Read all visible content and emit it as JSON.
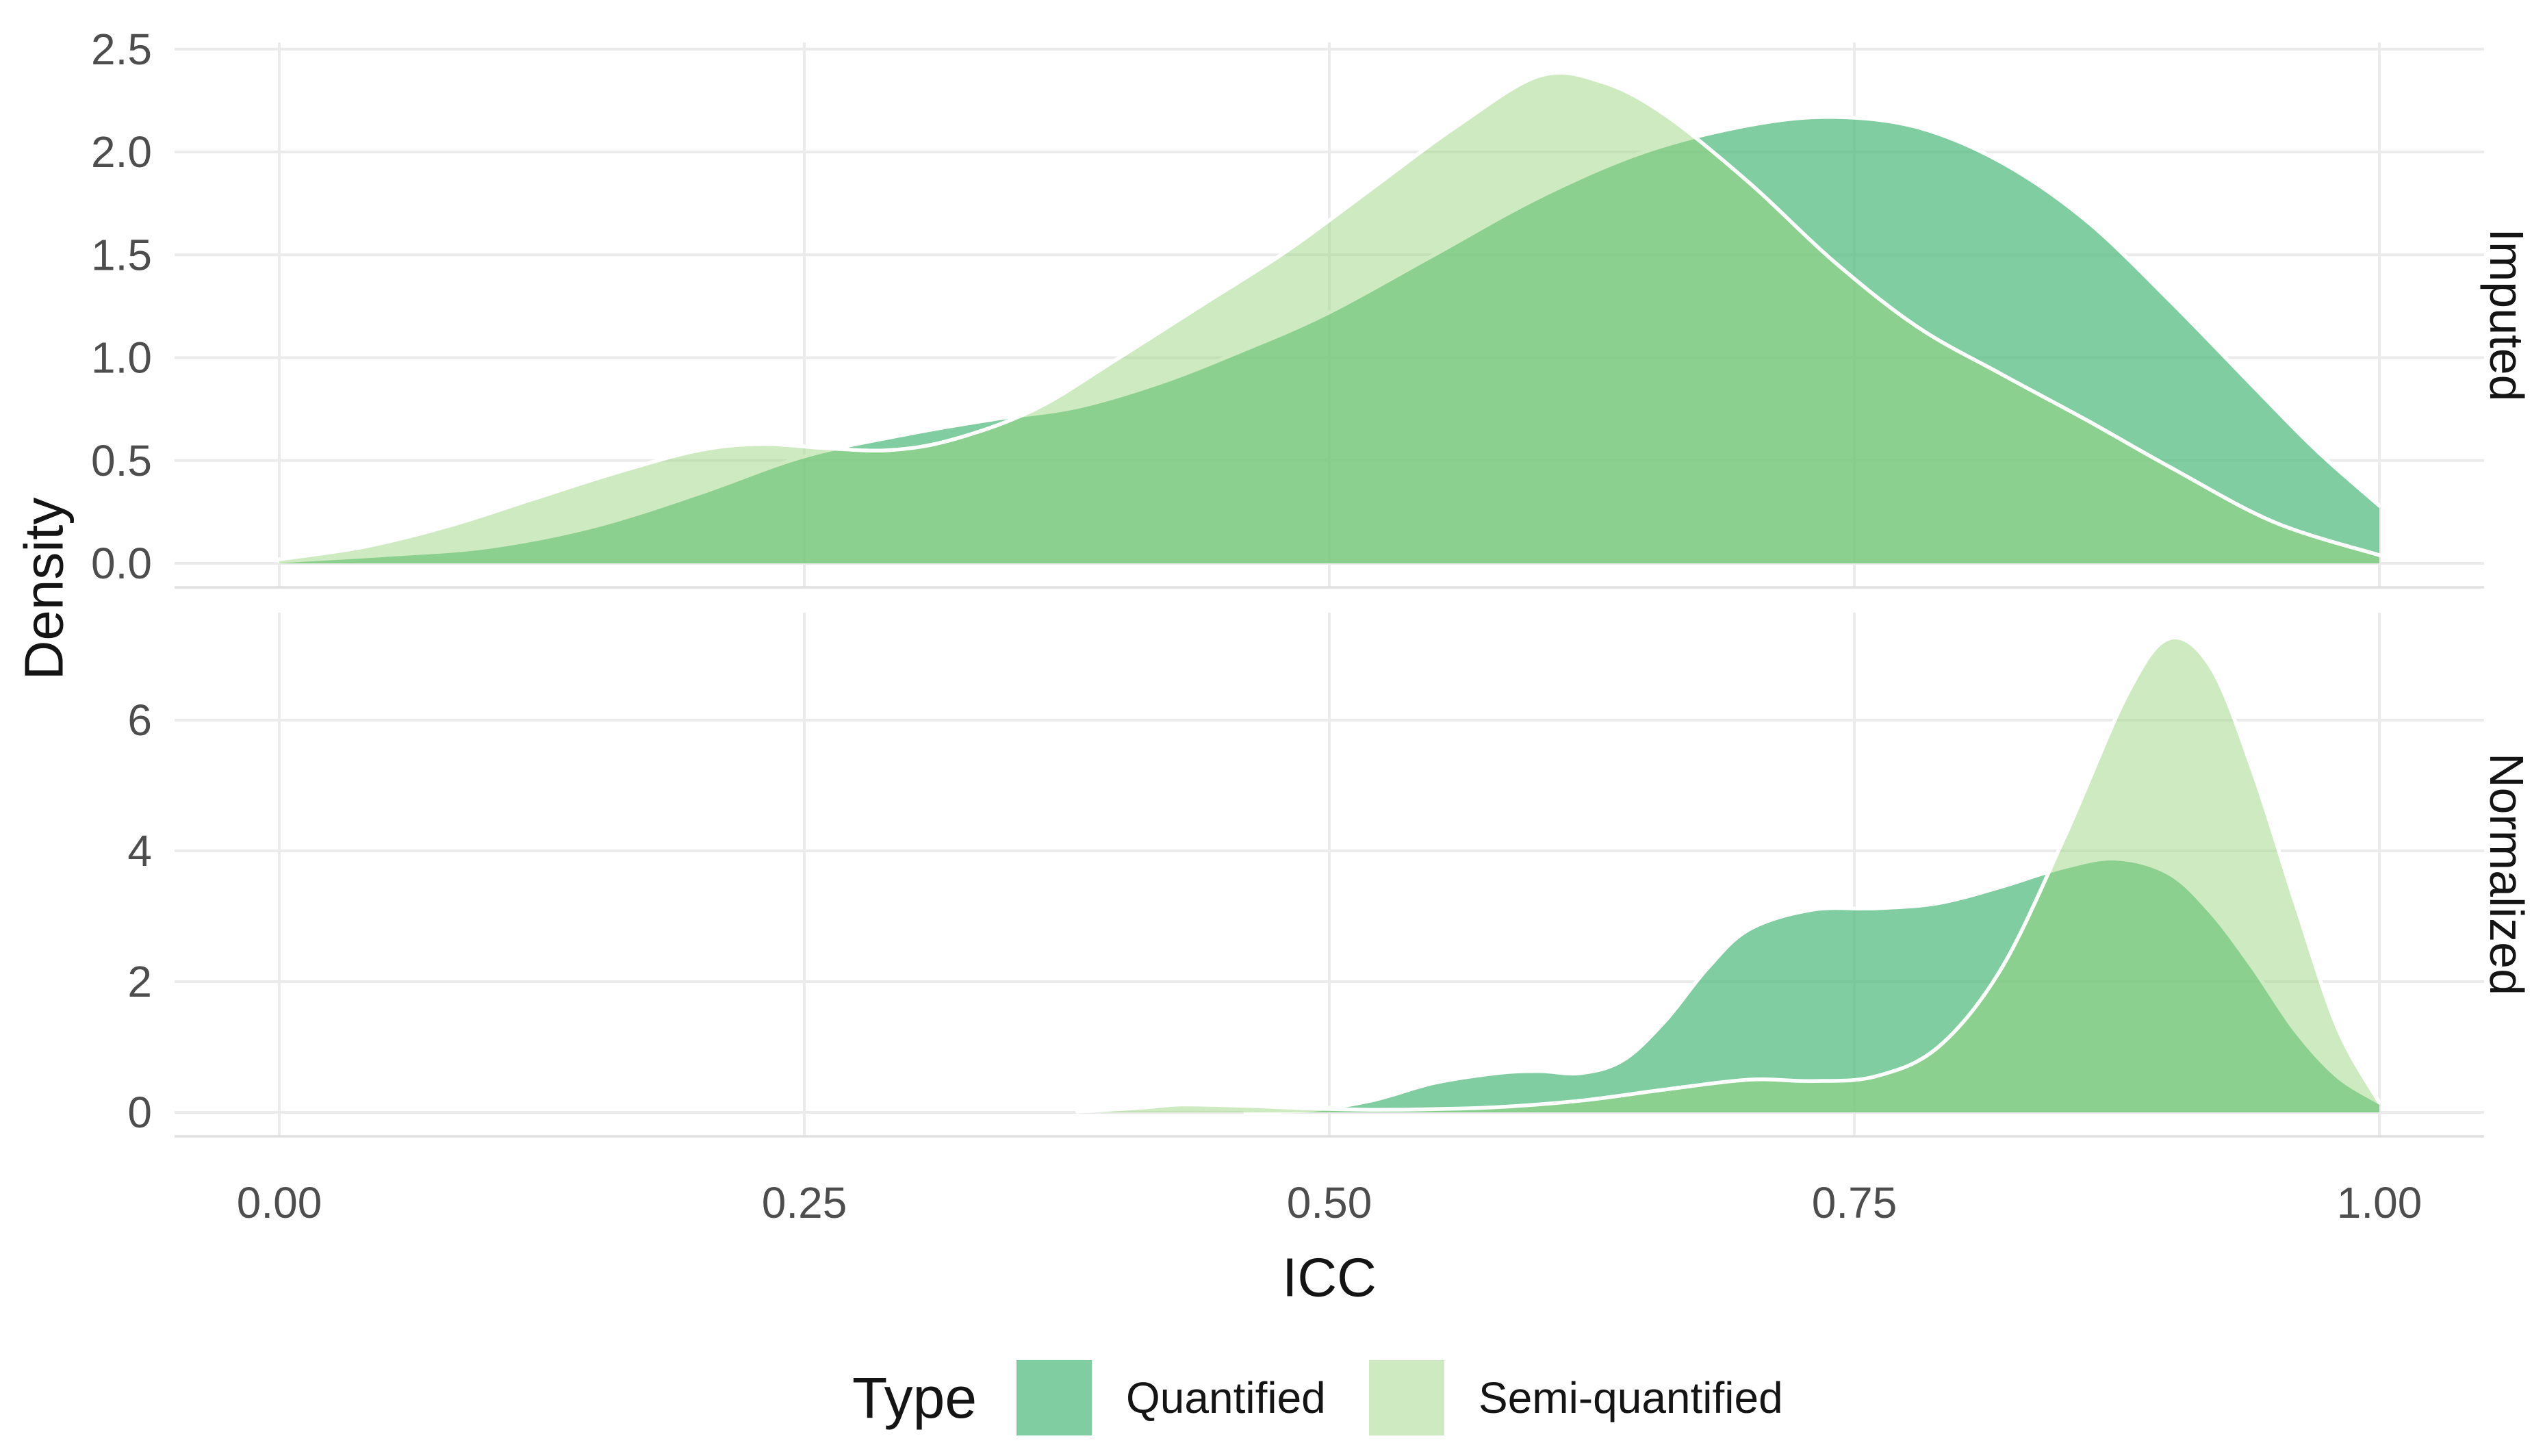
{
  "chart_data": {
    "type": "area",
    "subtype": "density",
    "title": "",
    "xlabel": "ICC",
    "ylabel": "Density",
    "grid": true,
    "legend_position": "bottom",
    "legend": {
      "title": "Type",
      "entries": [
        {
          "label": "Quantified",
          "fill": "#4DBA7B",
          "fill_opacity": 0.72
        },
        {
          "label": "Semi-quantified",
          "fill": "#98D47B",
          "fill_opacity": 0.48
        }
      ]
    },
    "x_axis": {
      "ticks": [
        0,
        0.25,
        0.5,
        0.75,
        1.0
      ],
      "tick_labels": [
        "0.00",
        "0.25",
        "0.50",
        "0.75",
        "1.00"
      ],
      "range": [
        0,
        1
      ]
    },
    "facets": [
      {
        "label": "Imputed",
        "ylim": [
          0,
          2.53
        ],
        "y_ticks": [
          0,
          0.5,
          1.0,
          1.5,
          2.0,
          2.5
        ],
        "y_tick_labels": [
          "0.0",
          "0.5",
          "1.0",
          "1.5",
          "2.0",
          "2.5"
        ],
        "series": [
          {
            "name": "Quantified",
            "points": [
              [
                0,
                0.01
              ],
              [
                0.05,
                0.04
              ],
              [
                0.1,
                0.08
              ],
              [
                0.15,
                0.18
              ],
              [
                0.2,
                0.34
              ],
              [
                0.25,
                0.52
              ],
              [
                0.3,
                0.63
              ],
              [
                0.34,
                0.7
              ],
              [
                0.38,
                0.76
              ],
              [
                0.42,
                0.88
              ],
              [
                0.46,
                1.04
              ],
              [
                0.5,
                1.22
              ],
              [
                0.55,
                1.5
              ],
              [
                0.6,
                1.78
              ],
              [
                0.65,
                2.0
              ],
              [
                0.7,
                2.13
              ],
              [
                0.74,
                2.17
              ],
              [
                0.78,
                2.12
              ],
              [
                0.82,
                1.95
              ],
              [
                0.86,
                1.67
              ],
              [
                0.9,
                1.28
              ],
              [
                0.94,
                0.86
              ],
              [
                0.97,
                0.55
              ],
              [
                1.0,
                0.28
              ]
            ]
          },
          {
            "name": "Semi-quantified",
            "points": [
              [
                0,
                0.02
              ],
              [
                0.04,
                0.08
              ],
              [
                0.08,
                0.18
              ],
              [
                0.12,
                0.31
              ],
              [
                0.16,
                0.44
              ],
              [
                0.2,
                0.55
              ],
              [
                0.23,
                0.58
              ],
              [
                0.26,
                0.56
              ],
              [
                0.29,
                0.55
              ],
              [
                0.32,
                0.6
              ],
              [
                0.36,
                0.75
              ],
              [
                0.4,
                1.0
              ],
              [
                0.44,
                1.26
              ],
              [
                0.48,
                1.52
              ],
              [
                0.52,
                1.82
              ],
              [
                0.56,
                2.12
              ],
              [
                0.6,
                2.37
              ],
              [
                0.63,
                2.34
              ],
              [
                0.66,
                2.18
              ],
              [
                0.7,
                1.85
              ],
              [
                0.74,
                1.47
              ],
              [
                0.78,
                1.15
              ],
              [
                0.82,
                0.92
              ],
              [
                0.86,
                0.7
              ],
              [
                0.9,
                0.47
              ],
              [
                0.95,
                0.2
              ],
              [
                1.0,
                0.04
              ]
            ]
          }
        ]
      },
      {
        "label": "Normalized",
        "ylim": [
          0,
          7.65
        ],
        "y_ticks": [
          0,
          2,
          4,
          6
        ],
        "y_tick_labels": [
          "0",
          "2",
          "4",
          "6"
        ],
        "series": [
          {
            "name": "Quantified",
            "points": [
              [
                0.46,
                0.0
              ],
              [
                0.49,
                0.03
              ],
              [
                0.52,
                0.18
              ],
              [
                0.55,
                0.45
              ],
              [
                0.58,
                0.6
              ],
              [
                0.6,
                0.63
              ],
              [
                0.62,
                0.6
              ],
              [
                0.64,
                0.8
              ],
              [
                0.66,
                1.4
              ],
              [
                0.68,
                2.2
              ],
              [
                0.7,
                2.8
              ],
              [
                0.73,
                3.1
              ],
              [
                0.76,
                3.12
              ],
              [
                0.79,
                3.2
              ],
              [
                0.82,
                3.45
              ],
              [
                0.85,
                3.75
              ],
              [
                0.875,
                3.88
              ],
              [
                0.9,
                3.65
              ],
              [
                0.92,
                3.05
              ],
              [
                0.94,
                2.2
              ],
              [
                0.96,
                1.25
              ],
              [
                0.98,
                0.55
              ],
              [
                1.0,
                0.15
              ]
            ]
          },
          {
            "name": "Semi-quantified",
            "points": [
              [
                0.38,
                0.01
              ],
              [
                0.41,
                0.07
              ],
              [
                0.43,
                0.12
              ],
              [
                0.46,
                0.1
              ],
              [
                0.49,
                0.06
              ],
              [
                0.52,
                0.04
              ],
              [
                0.55,
                0.05
              ],
              [
                0.58,
                0.08
              ],
              [
                0.62,
                0.18
              ],
              [
                0.66,
                0.35
              ],
              [
                0.7,
                0.5
              ],
              [
                0.73,
                0.48
              ],
              [
                0.76,
                0.55
              ],
              [
                0.79,
                1.0
              ],
              [
                0.82,
                2.2
              ],
              [
                0.85,
                4.2
              ],
              [
                0.88,
                6.4
              ],
              [
                0.9,
                7.25
              ],
              [
                0.92,
                6.8
              ],
              [
                0.94,
                5.2
              ],
              [
                0.96,
                3.2
              ],
              [
                0.98,
                1.3
              ],
              [
                1.0,
                0.15
              ]
            ]
          }
        ]
      }
    ],
    "styles": {
      "curve_stroke": "#FFFFFF",
      "curve_stroke_width": 5.5,
      "grid_color": "#EBEBEB",
      "panel_edge_color": "#E0E0E0",
      "tick_text_color": "#4D4D4D",
      "text_color": "#141414",
      "background": "#FFFFFF"
    }
  }
}
